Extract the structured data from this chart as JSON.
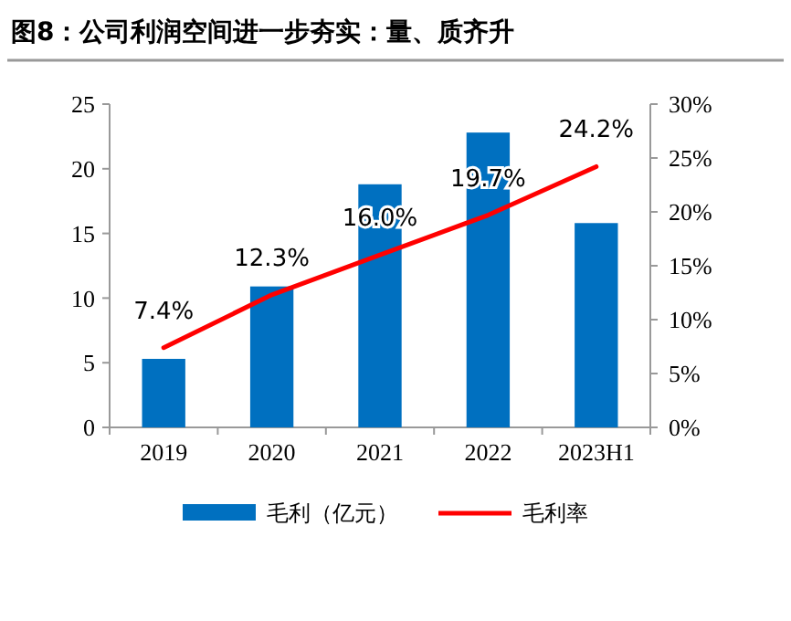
{
  "chart_data": {
    "type": "bar",
    "title": "图8：公司利润空间进一步夯实：量、质齐升",
    "categories": [
      "2019",
      "2020",
      "2021",
      "2022",
      "2023H1"
    ],
    "series": [
      {
        "name": "毛利（亿元）",
        "color": "#0070c0",
        "values": [
          5.3,
          10.9,
          18.8,
          22.8,
          15.8
        ]
      },
      {
        "name": "毛利率",
        "type": "line",
        "axis": "y2",
        "color": "#ff0000",
        "values": [
          7.4,
          12.3,
          16.0,
          19.7,
          24.2
        ],
        "value_labels": [
          "7.4%",
          "12.3%",
          "16.0%",
          "19.7%",
          "24.2%"
        ]
      }
    ],
    "ylim": [
      0,
      25
    ],
    "yticks": [
      0,
      5,
      10,
      15,
      20,
      25
    ],
    "y2lim": [
      0,
      30
    ],
    "y2ticks": [
      {
        "value": 0,
        "label": "0%"
      },
      {
        "value": 5,
        "label": "5%"
      },
      {
        "value": 10,
        "label": "10%"
      },
      {
        "value": 15,
        "label": "15%"
      },
      {
        "value": 20,
        "label": "20%"
      },
      {
        "value": 25,
        "label": "25%"
      },
      {
        "value": 30,
        "label": "30%"
      }
    ],
    "legend": "bottom",
    "marker": "none",
    "line_style": "solid"
  }
}
